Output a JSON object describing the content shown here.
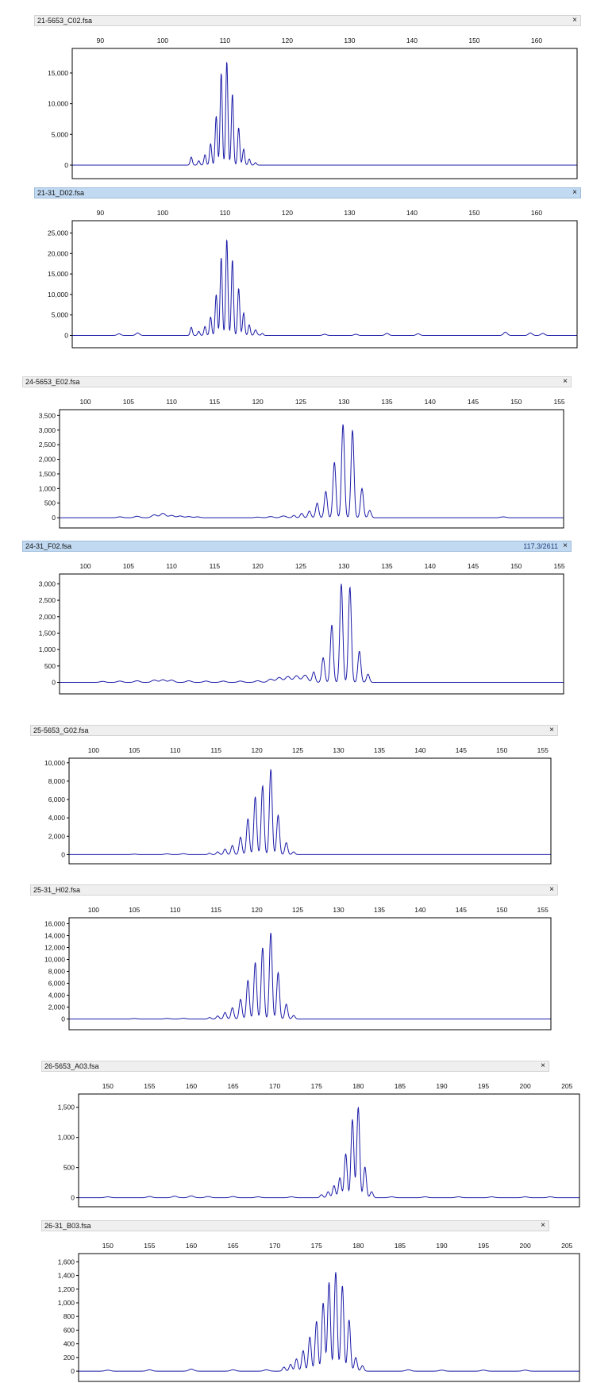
{
  "panels": [
    {
      "file": "21-5653_C02.fsa",
      "coord": "",
      "selected": false,
      "close": "×"
    },
    {
      "file": "21-31_D02.fsa",
      "coord": "",
      "selected": true,
      "close": "×"
    },
    {
      "file": "24-5653_E02.fsa",
      "coord": "",
      "selected": false,
      "close": "×"
    },
    {
      "file": "24-31_F02.fsa",
      "coord": "117.3/2611",
      "selected": true,
      "close": "×"
    },
    {
      "file": "25-5653_G02.fsa",
      "coord": "",
      "selected": false,
      "close": "×"
    },
    {
      "file": "25-31_H02.fsa",
      "coord": "",
      "selected": false,
      "close": "×"
    },
    {
      "file": "26-5653_A03.fsa",
      "coord": "",
      "selected": false,
      "close": "×"
    },
    {
      "file": "26-31_B03.fsa",
      "coord": "",
      "selected": false,
      "close": "×"
    }
  ],
  "colors": {
    "trace": "#1c1ca8",
    "frame": "#000000",
    "titlebar": "#efefef",
    "titlebar_selected": "#c1d9f1"
  },
  "chart_data": [
    {
      "type": "line",
      "xlim": [
        85.5,
        166.5
      ],
      "x_ticks": [
        90,
        100,
        110,
        120,
        130,
        140,
        150,
        160
      ],
      "ylim": [
        -2200,
        19000
      ],
      "y_ticks": [
        0,
        5000,
        10000,
        15000
      ],
      "y_tick_labels": [
        "0",
        "5,000",
        "10,000",
        "15,000"
      ],
      "noise": [
        [
          96,
          0.8
        ],
        [
          136,
          1.0
        ],
        [
          155,
          0.6
        ]
      ],
      "peaks": [
        [
          104.6,
          1300
        ],
        [
          105.8,
          700
        ],
        [
          106.8,
          1700
        ],
        [
          107.7,
          3500
        ],
        [
          108.6,
          8000
        ],
        [
          109.4,
          15000
        ],
        [
          110.3,
          16900
        ],
        [
          111.2,
          11600
        ],
        [
          112.2,
          6100
        ],
        [
          113.0,
          2600
        ],
        [
          113.9,
          1000
        ],
        [
          114.9,
          400
        ]
      ]
    },
    {
      "type": "line",
      "xlim": [
        85.5,
        166.5
      ],
      "x_ticks": [
        90,
        100,
        110,
        120,
        130,
        140,
        150,
        160
      ],
      "ylim": [
        -3000,
        28000
      ],
      "y_ticks": [
        0,
        5000,
        10000,
        15000,
        20000,
        25000
      ],
      "y_tick_labels": [
        "0",
        "5,000",
        "10,000",
        "15,000",
        "20,000",
        "25,000"
      ],
      "noise": [
        [
          93,
          400
        ],
        [
          96,
          600
        ],
        [
          115,
          400
        ],
        [
          126,
          300
        ],
        [
          131,
          300
        ],
        [
          136,
          500
        ],
        [
          141,
          400
        ],
        [
          155,
          800
        ],
        [
          159,
          600
        ],
        [
          161,
          500
        ]
      ],
      "peaks": [
        [
          104.6,
          2000
        ],
        [
          105.8,
          1000
        ],
        [
          106.8,
          2200
        ],
        [
          107.7,
          4500
        ],
        [
          108.6,
          10000
        ],
        [
          109.4,
          19000
        ],
        [
          110.3,
          23500
        ],
        [
          111.2,
          18500
        ],
        [
          112.2,
          11500
        ],
        [
          113.0,
          5500
        ],
        [
          113.9,
          2600
        ],
        [
          114.9,
          1000
        ],
        [
          116.0,
          500
        ]
      ]
    },
    {
      "type": "line",
      "xlim": [
        97,
        155.5
      ],
      "x_ticks": [
        100,
        105,
        110,
        115,
        120,
        125,
        130,
        135,
        140,
        145,
        150,
        155
      ],
      "ylim": [
        -350,
        3700
      ],
      "y_ticks": [
        0,
        500,
        1000,
        1500,
        2000,
        2500,
        3000,
        3500
      ],
      "y_tick_labels": [
        "0",
        "500",
        "1,000",
        "1,500",
        "2,000",
        "2,500",
        "3,000",
        "3,500"
      ],
      "noise": [
        [
          104,
          30
        ],
        [
          106,
          50
        ],
        [
          108,
          100
        ],
        [
          109,
          150
        ],
        [
          110,
          80
        ],
        [
          111,
          60
        ],
        [
          112,
          40
        ],
        [
          113,
          30
        ],
        [
          120,
          20
        ],
        [
          121.5,
          40
        ],
        [
          123,
          60
        ],
        [
          148.5,
          30
        ]
      ],
      "peaks": [
        [
          124.2,
          80
        ],
        [
          125.1,
          150
        ],
        [
          126.0,
          230
        ],
        [
          126.9,
          500
        ],
        [
          127.9,
          900
        ],
        [
          128.9,
          1900
        ],
        [
          129.9,
          3200
        ],
        [
          131.0,
          3000
        ],
        [
          132.1,
          1000
        ],
        [
          133.0,
          250
        ]
      ]
    },
    {
      "type": "line",
      "xlim": [
        97,
        155.5
      ],
      "x_ticks": [
        100,
        105,
        110,
        115,
        120,
        125,
        130,
        135,
        140,
        145,
        150,
        155
      ],
      "ylim": [
        -350,
        3300
      ],
      "y_ticks": [
        0,
        500,
        1000,
        1500,
        2000,
        2500,
        3000
      ],
      "y_tick_labels": [
        "0",
        "500",
        "1,000",
        "1,500",
        "2,000",
        "2,500",
        "3,000"
      ],
      "noise": [
        [
          102,
          30
        ],
        [
          104,
          40
        ],
        [
          106,
          50
        ],
        [
          108,
          70
        ],
        [
          109,
          80
        ],
        [
          110,
          70
        ],
        [
          112,
          50
        ],
        [
          114,
          40
        ],
        [
          116,
          40
        ],
        [
          118,
          40
        ],
        [
          120,
          50
        ],
        [
          121.5,
          100
        ],
        [
          122.5,
          150
        ],
        [
          123.5,
          180
        ],
        [
          124.5,
          200
        ],
        [
          125.5,
          220
        ]
      ],
      "peaks": [
        [
          126.5,
          320
        ],
        [
          127.6,
          750
        ],
        [
          128.6,
          1750
        ],
        [
          129.7,
          3000
        ],
        [
          130.7,
          2900
        ],
        [
          131.8,
          950
        ],
        [
          132.8,
          250
        ]
      ]
    },
    {
      "type": "line",
      "xlim": [
        97,
        156
      ],
      "x_ticks": [
        100,
        105,
        110,
        115,
        120,
        125,
        130,
        135,
        140,
        145,
        150,
        155
      ],
      "ylim": [
        -1000,
        10500
      ],
      "y_ticks": [
        0,
        2000,
        4000,
        6000,
        8000,
        10000
      ],
      "y_tick_labels": [
        "0",
        "2,000",
        "4,000",
        "6,000",
        "8,000",
        "10,000"
      ],
      "noise": [
        [
          105,
          50
        ],
        [
          109,
          80
        ],
        [
          111,
          100
        ]
      ],
      "peaks": [
        [
          114.2,
          150
        ],
        [
          115.2,
          300
        ],
        [
          116.1,
          600
        ],
        [
          117.0,
          1000
        ],
        [
          118.0,
          1900
        ],
        [
          118.9,
          3900
        ],
        [
          119.8,
          6300
        ],
        [
          120.7,
          7500
        ],
        [
          121.7,
          9300
        ],
        [
          122.6,
          4300
        ],
        [
          123.6,
          1300
        ],
        [
          124.5,
          300
        ]
      ]
    },
    {
      "type": "line",
      "xlim": [
        97,
        156
      ],
      "x_ticks": [
        100,
        105,
        110,
        115,
        120,
        125,
        130,
        135,
        140,
        145,
        150,
        155
      ],
      "ylim": [
        -1800,
        17000
      ],
      "y_ticks": [
        0,
        2000,
        4000,
        6000,
        8000,
        10000,
        12000,
        14000,
        16000
      ],
      "y_tick_labels": [
        "0",
        "2,000",
        "4,000",
        "6,000",
        "8,000",
        "10,000",
        "12,000",
        "14,000",
        "16,000"
      ],
      "noise": [
        [
          105,
          80
        ],
        [
          109,
          100
        ],
        [
          111,
          120
        ]
      ],
      "peaks": [
        [
          114.2,
          250
        ],
        [
          115.2,
          500
        ],
        [
          116.1,
          1100
        ],
        [
          117.0,
          1900
        ],
        [
          118.0,
          3300
        ],
        [
          118.9,
          6500
        ],
        [
          119.8,
          9500
        ],
        [
          120.7,
          12000
        ],
        [
          121.7,
          14500
        ],
        [
          122.6,
          7800
        ],
        [
          123.6,
          2500
        ],
        [
          124.5,
          600
        ]
      ]
    },
    {
      "type": "line",
      "xlim": [
        146.5,
        206.5
      ],
      "x_ticks": [
        150,
        155,
        160,
        165,
        170,
        175,
        180,
        185,
        190,
        195,
        200,
        205
      ],
      "ylim": [
        -150,
        1720
      ],
      "y_ticks": [
        0,
        500,
        1000,
        1500
      ],
      "y_tick_labels": [
        "0",
        "500",
        "1,000",
        "1,500"
      ],
      "noise": [
        [
          150,
          15
        ],
        [
          155,
          20
        ],
        [
          158,
          25
        ],
        [
          160,
          30
        ],
        [
          162,
          20
        ],
        [
          165,
          20
        ],
        [
          168,
          15
        ],
        [
          172,
          15
        ],
        [
          184,
          15
        ],
        [
          188,
          15
        ],
        [
          192,
          15
        ],
        [
          196,
          15
        ],
        [
          200,
          15
        ],
        [
          203,
          15
        ]
      ],
      "peaks": [
        [
          175.6,
          50
        ],
        [
          176.4,
          100
        ],
        [
          177.1,
          200
        ],
        [
          177.8,
          330
        ],
        [
          178.5,
          730
        ],
        [
          179.3,
          1300
        ],
        [
          180.0,
          1500
        ],
        [
          180.8,
          510
        ],
        [
          181.6,
          100
        ]
      ]
    },
    {
      "type": "line",
      "xlim": [
        146.5,
        206.5
      ],
      "x_ticks": [
        150,
        155,
        160,
        165,
        170,
        175,
        180,
        185,
        190,
        195,
        200,
        205
      ],
      "ylim": [
        -150,
        1720
      ],
      "y_ticks": [
        0,
        200,
        400,
        600,
        800,
        1000,
        1200,
        1400,
        1600
      ],
      "y_tick_labels": [
        "0",
        "200",
        "400",
        "600",
        "800",
        "1,000",
        "1,200",
        "1,400",
        "1,600"
      ],
      "noise": [
        [
          150,
          15
        ],
        [
          155,
          20
        ],
        [
          160,
          30
        ],
        [
          165,
          20
        ],
        [
          169,
          20
        ],
        [
          186,
          20
        ],
        [
          190,
          15
        ],
        [
          195,
          15
        ],
        [
          200,
          15
        ]
      ],
      "peaks": [
        [
          171.1,
          60
        ],
        [
          171.9,
          100
        ],
        [
          172.6,
          180
        ],
        [
          173.4,
          300
        ],
        [
          174.2,
          500
        ],
        [
          175.0,
          730
        ],
        [
          175.8,
          1000
        ],
        [
          176.5,
          1300
        ],
        [
          177.3,
          1450
        ],
        [
          178.1,
          1250
        ],
        [
          178.9,
          750
        ],
        [
          179.7,
          200
        ],
        [
          180.5,
          80
        ]
      ]
    }
  ]
}
